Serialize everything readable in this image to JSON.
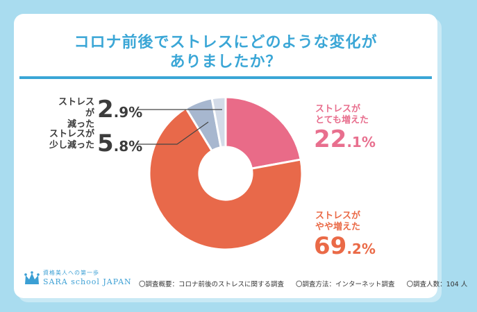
{
  "title_line1": "コロナ前後でストレスにどのような変化が",
  "title_line2": "ありましたか？",
  "chart_data": {
    "type": "pie",
    "title": "コロナ前後でストレスにどのような変化がありましたか？",
    "series": [
      {
        "name": "ストレスがとても増えた",
        "label_line1": "ストレスが",
        "label_line2": "とても増えた",
        "value": 22.1,
        "value_int": "22",
        "value_dec": ".1%",
        "color": "#e96b88"
      },
      {
        "name": "ストレスがやや増えた",
        "label_line1": "ストレスが",
        "label_line2": "やや増えた",
        "value": 69.2,
        "value_int": "69",
        "value_dec": ".2%",
        "color": "#e8694a"
      },
      {
        "name": "ストレスが少し減った",
        "label_line1": "ストレスが",
        "label_line2": "少し減った",
        "value": 5.8,
        "value_int": "5",
        "value_dec": ".8%",
        "color": "#a7b7cf"
      },
      {
        "name": "ストレスが減った",
        "label_line1": "ストレスが",
        "label_line2": "減った",
        "value": 2.9,
        "value_int": "2",
        "value_dec": ".9%",
        "color": "#d3dbe8"
      }
    ]
  },
  "footer": {
    "overview": "〇調査概要：コロナ前後のストレスに関する調査",
    "method": "〇調査方法：インターネット調査",
    "count": "〇調査人数：104 人"
  },
  "logo": {
    "tagline": "資格美人への第一歩",
    "name": "SARA school JAPAN"
  },
  "colors": {
    "accent": "#3aa6d6",
    "background": "#a9dcef"
  }
}
